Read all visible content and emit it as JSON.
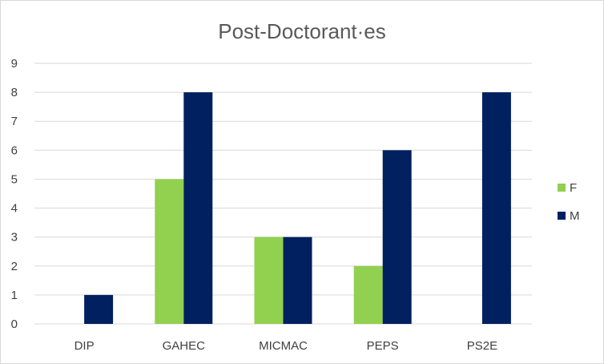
{
  "chart_data": {
    "type": "bar",
    "title": "Post-Doctorant·es",
    "categories": [
      "DIP",
      "GAHEC",
      "MICMAC",
      "PEPS",
      "PS2E"
    ],
    "series": [
      {
        "name": "F",
        "color": "#92d050",
        "values": [
          0,
          5,
          3,
          2,
          0
        ]
      },
      {
        "name": "M",
        "color": "#002060",
        "values": [
          1,
          8,
          3,
          6,
          8
        ]
      }
    ],
    "ylim": [
      0,
      9
    ],
    "yticks": [
      "0",
      "1",
      "2",
      "3",
      "4",
      "5",
      "6",
      "7",
      "8",
      "9"
    ],
    "grid": true,
    "legend": "right"
  }
}
